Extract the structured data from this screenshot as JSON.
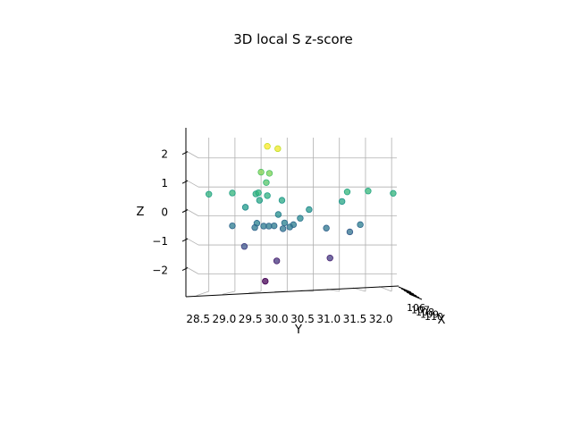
{
  "chart_data": {
    "type": "scatter",
    "projection": "3d",
    "title": "3D local S z-score",
    "xlabel": "X",
    "ylabel": "Y",
    "zlabel": "Z",
    "ylim": [
      28.3,
      32.1
    ],
    "zlim": [
      -2.6,
      2.7
    ],
    "grid": true,
    "colormap": "viridis",
    "y_ticks": [
      "28.5",
      "29.0",
      "29.5",
      "30.0",
      "30.5",
      "31.0",
      "31.5",
      "32.0"
    ],
    "z_ticks": [
      "−2",
      "−1",
      "0",
      "1",
      "2"
    ],
    "x_ticks": [
      "106",
      "107",
      "108",
      "109",
      "110"
    ],
    "points": [
      {
        "y": 29.62,
        "z": 2.4
      },
      {
        "y": 29.82,
        "z": 2.32
      },
      {
        "y": 29.5,
        "z": 1.51
      },
      {
        "y": 29.66,
        "z": 1.47
      },
      {
        "y": 29.6,
        "z": 1.15
      },
      {
        "y": 29.4,
        "z": 0.76
      },
      {
        "y": 29.45,
        "z": 0.8
      },
      {
        "y": 29.62,
        "z": 0.7
      },
      {
        "y": 29.47,
        "z": 0.54
      },
      {
        "y": 29.9,
        "z": 0.54
      },
      {
        "y": 28.5,
        "z": 0.75
      },
      {
        "y": 28.95,
        "z": 0.79
      },
      {
        "y": 31.05,
        "z": 0.5
      },
      {
        "y": 31.15,
        "z": 0.83
      },
      {
        "y": 31.55,
        "z": 0.86
      },
      {
        "y": 32.03,
        "z": 0.78
      },
      {
        "y": 29.2,
        "z": 0.3
      },
      {
        "y": 30.42,
        "z": 0.22
      },
      {
        "y": 29.83,
        "z": 0.05
      },
      {
        "y": 30.25,
        "z": -0.08
      },
      {
        "y": 29.42,
        "z": -0.25
      },
      {
        "y": 29.95,
        "z": -0.24
      },
      {
        "y": 30.12,
        "z": -0.3
      },
      {
        "y": 29.55,
        "z": -0.35
      },
      {
        "y": 29.65,
        "z": -0.35
      },
      {
        "y": 29.75,
        "z": -0.34
      },
      {
        "y": 30.05,
        "z": -0.38
      },
      {
        "y": 29.38,
        "z": -0.4
      },
      {
        "y": 29.92,
        "z": -0.44
      },
      {
        "y": 28.95,
        "z": -0.34
      },
      {
        "y": 30.75,
        "z": -0.42
      },
      {
        "y": 31.4,
        "z": -0.3
      },
      {
        "y": 31.2,
        "z": -0.55
      },
      {
        "y": 29.18,
        "z": -1.05
      },
      {
        "y": 29.8,
        "z": -1.55
      },
      {
        "y": 30.82,
        "z": -1.45
      },
      {
        "y": 29.58,
        "z": -2.25
      }
    ]
  }
}
